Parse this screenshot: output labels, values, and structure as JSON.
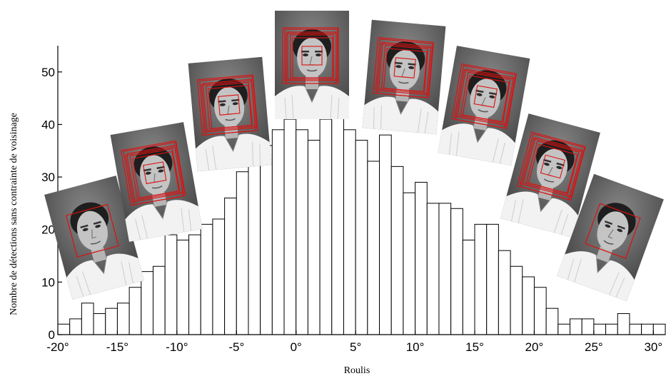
{
  "chart_data": {
    "type": "bar",
    "title": "",
    "xlabel": "Roulis",
    "ylabel": "Nombre de détections sans contrainte de voisinage",
    "xlim": [
      -20,
      31
    ],
    "ylim": [
      0,
      55
    ],
    "bin_width": 1,
    "x": [
      -20,
      -19,
      -18,
      -17,
      -16,
      -15,
      -14,
      -13,
      -12,
      -11,
      -10,
      -9,
      -8,
      -7,
      -6,
      -5,
      -4,
      -3,
      -2,
      -1,
      0,
      1,
      2,
      3,
      4,
      5,
      6,
      7,
      8,
      9,
      10,
      11,
      12,
      13,
      14,
      15,
      16,
      17,
      18,
      19,
      20,
      21,
      22,
      23,
      24,
      25,
      26,
      27,
      28,
      29,
      30
    ],
    "values": [
      2,
      3,
      6,
      4,
      5,
      6,
      9,
      12,
      13,
      19,
      18,
      19,
      21,
      22,
      26,
      31,
      34,
      36,
      39,
      41,
      39,
      37,
      41,
      43,
      39,
      37,
      33,
      38,
      32,
      27,
      29,
      25,
      25,
      24,
      18,
      21,
      21,
      16,
      13,
      11,
      9,
      5,
      2,
      3,
      3,
      2,
      2,
      4,
      2,
      2,
      2
    ],
    "x_ticks": [
      -20,
      -15,
      -10,
      -5,
      0,
      5,
      10,
      15,
      20,
      25,
      30
    ],
    "x_tick_labels": [
      "-20°",
      "-15°",
      "-10°",
      "-5°",
      "0°",
      "5°",
      "10°",
      "15°",
      "20°",
      "25°",
      "30°"
    ],
    "y_ticks": [
      0,
      10,
      20,
      30,
      40,
      50
    ],
    "y_tick_labels": [
      "0",
      "10",
      "20",
      "30",
      "40",
      "50"
    ],
    "grid": false,
    "legend": "none"
  },
  "face_thumbnails": [
    {
      "roll_deg": -20,
      "label": "face-roll-minus-20"
    },
    {
      "roll_deg": -15,
      "label": "face-roll-minus-15"
    },
    {
      "roll_deg": -10,
      "label": "face-roll-minus-10"
    },
    {
      "roll_deg": 0,
      "label": "face-roll-0"
    },
    {
      "roll_deg": 10,
      "label": "face-roll-plus-10"
    },
    {
      "roll_deg": 15,
      "label": "face-roll-plus-15"
    },
    {
      "roll_deg": 20,
      "label": "face-roll-plus-20"
    },
    {
      "roll_deg": 25,
      "label": "face-roll-plus-25"
    }
  ],
  "colors": {
    "bar_fill": "#ffffff",
    "bar_stroke": "#000000",
    "detection_box": "#dd1111",
    "photo_bg": "#6e6e6e"
  }
}
